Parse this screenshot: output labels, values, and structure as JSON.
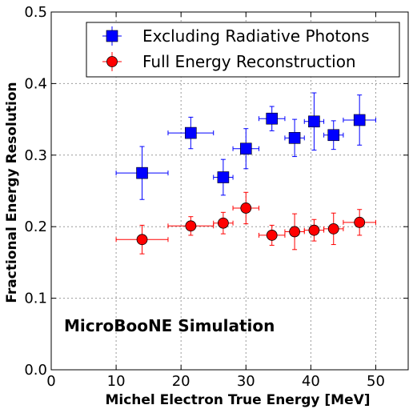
{
  "chart_data": {
    "type": "scatter",
    "title": "",
    "xlabel": "Michel Electron True Energy [MeV]",
    "ylabel": "Fractional Energy Resolution",
    "xlim": [
      0,
      55
    ],
    "ylim": [
      0,
      0.5
    ],
    "xticks": [
      0,
      10,
      20,
      30,
      40,
      50
    ],
    "yticks": [
      0.0,
      0.1,
      0.2,
      0.3,
      0.4,
      0.5
    ],
    "xtick_labels": [
      "0",
      "10",
      "20",
      "30",
      "40",
      "50"
    ],
    "ytick_labels": [
      "0.0",
      "0.1",
      "0.2",
      "0.3",
      "0.4",
      "0.5"
    ],
    "grid": true,
    "legend_position": "top-right",
    "annotation": "MicroBooNE Simulation",
    "series": [
      {
        "name": "Excluding Radiative Photons",
        "color": "#0000ff",
        "marker": "square",
        "points": [
          {
            "x": 14.0,
            "xerr": 4.0,
            "y": 0.275,
            "yerr": 0.037
          },
          {
            "x": 21.5,
            "xerr": 3.5,
            "y": 0.331,
            "yerr": 0.022
          },
          {
            "x": 26.5,
            "xerr": 1.5,
            "y": 0.269,
            "yerr": 0.025
          },
          {
            "x": 30.0,
            "xerr": 2.0,
            "y": 0.309,
            "yerr": 0.028
          },
          {
            "x": 34.0,
            "xerr": 2.0,
            "y": 0.351,
            "yerr": 0.017
          },
          {
            "x": 37.5,
            "xerr": 1.5,
            "y": 0.324,
            "yerr": 0.026
          },
          {
            "x": 40.5,
            "xerr": 1.5,
            "y": 0.347,
            "yerr": 0.04
          },
          {
            "x": 43.5,
            "xerr": 1.5,
            "y": 0.328,
            "yerr": 0.02
          },
          {
            "x": 47.5,
            "xerr": 2.5,
            "y": 0.349,
            "yerr": 0.035
          }
        ]
      },
      {
        "name": "Full Energy Reconstruction",
        "color": "#ff0000",
        "marker": "circle",
        "points": [
          {
            "x": 14.0,
            "xerr": 4.0,
            "y": 0.182,
            "yerr": 0.02
          },
          {
            "x": 21.5,
            "xerr": 3.5,
            "y": 0.201,
            "yerr": 0.013
          },
          {
            "x": 26.5,
            "xerr": 1.5,
            "y": 0.205,
            "yerr": 0.015
          },
          {
            "x": 30.0,
            "xerr": 2.0,
            "y": 0.226,
            "yerr": 0.022
          },
          {
            "x": 34.0,
            "xerr": 2.0,
            "y": 0.188,
            "yerr": 0.014
          },
          {
            "x": 37.5,
            "xerr": 1.5,
            "y": 0.193,
            "yerr": 0.025
          },
          {
            "x": 40.5,
            "xerr": 1.5,
            "y": 0.195,
            "yerr": 0.015
          },
          {
            "x": 43.5,
            "xerr": 1.5,
            "y": 0.197,
            "yerr": 0.022
          },
          {
            "x": 47.5,
            "xerr": 2.5,
            "y": 0.206,
            "yerr": 0.018
          }
        ]
      }
    ]
  }
}
